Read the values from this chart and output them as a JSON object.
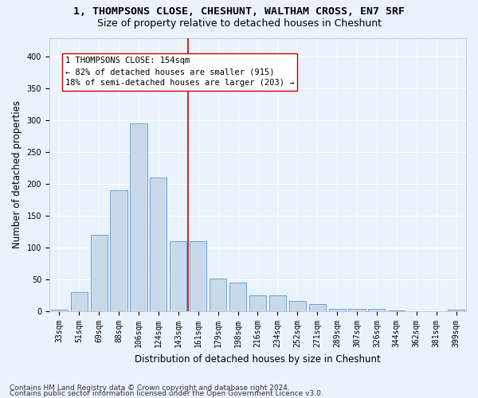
{
  "title": "1, THOMPSONS CLOSE, CHESHUNT, WALTHAM CROSS, EN7 5RF",
  "subtitle": "Size of property relative to detached houses in Cheshunt",
  "xlabel": "Distribution of detached houses by size in Cheshunt",
  "ylabel": "Number of detached properties",
  "bar_color": "#c9d9ea",
  "bar_edge_color": "#5b9bd5",
  "categories": [
    "33sqm",
    "51sqm",
    "69sqm",
    "88sqm",
    "106sqm",
    "124sqm",
    "143sqm",
    "161sqm",
    "179sqm",
    "198sqm",
    "216sqm",
    "234sqm",
    "252sqm",
    "271sqm",
    "289sqm",
    "307sqm",
    "326sqm",
    "344sqm",
    "362sqm",
    "381sqm",
    "399sqm"
  ],
  "values": [
    3,
    30,
    120,
    190,
    295,
    210,
    110,
    110,
    52,
    45,
    25,
    25,
    17,
    12,
    4,
    4,
    4,
    2,
    0,
    0,
    3
  ],
  "vline_color": "#cc0000",
  "annotation_text": "1 THOMPSONS CLOSE: 154sqm\n← 82% of detached houses are smaller (915)\n18% of semi-detached houses are larger (203) →",
  "annotation_box_color": "#ffffff",
  "annotation_box_edge": "#cc0000",
  "ylim": [
    0,
    430
  ],
  "yticks": [
    0,
    50,
    100,
    150,
    200,
    250,
    300,
    350,
    400
  ],
  "footer_line1": "Contains HM Land Registry data © Crown copyright and database right 2024.",
  "footer_line2": "Contains public sector information licensed under the Open Government Licence v3.0.",
  "background_color": "#eaf2fb",
  "plot_bg_color": "#eaf2fb",
  "grid_color": "#ffffff",
  "title_fontsize": 9.5,
  "subtitle_fontsize": 9,
  "axis_label_fontsize": 8.5,
  "tick_fontsize": 7,
  "annotation_fontsize": 7.5,
  "footer_fontsize": 6.5,
  "vline_bar_index": 7
}
